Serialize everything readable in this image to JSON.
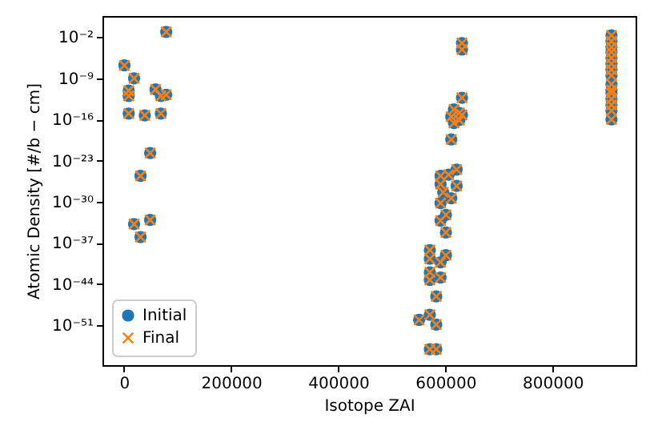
{
  "chart_data": {
    "type": "scatter",
    "xlabel": "Isotope ZAI",
    "ylabel": "Atomic Density [#/b − cm]",
    "log": "y",
    "legend": "bottom left",
    "grid": false,
    "xlim": [
      -40000,
      955000
    ],
    "xticks": [
      0,
      200000,
      400000,
      600000,
      800000
    ],
    "ylim": [
      1.6e-58,
      40
    ],
    "yticks": [
      {
        "value": 0.01,
        "label": "10⁻²"
      },
      {
        "value": 1e-09,
        "label": "10⁻⁹"
      },
      {
        "value": 1e-16,
        "label": "10⁻¹⁶"
      },
      {
        "value": 1e-23,
        "label": "10⁻²³"
      },
      {
        "value": 1e-30,
        "label": "10⁻³⁰"
      },
      {
        "value": 1e-37,
        "label": "10⁻³⁷"
      },
      {
        "value": 1e-44,
        "label": "10⁻⁴⁴"
      },
      {
        "value": 1e-51,
        "label": "10⁻⁵¹"
      }
    ],
    "x": [
      1000,
      19000,
      19000,
      9000,
      9000,
      9000,
      59000,
      69000,
      69000,
      79000,
      79000,
      39000,
      49000,
      49000,
      31000,
      31000,
      631000,
      631000,
      631000,
      616000,
      626000,
      631000,
      616000,
      626000,
      611000,
      611000,
      621000,
      591000,
      606000,
      591000,
      621000,
      596000,
      611000,
      591000,
      601000,
      591000,
      601000,
      571000,
      571000,
      601000,
      591000,
      571000,
      571000,
      591000,
      583000,
      551000,
      571000,
      583000,
      571000,
      583000,
      910000,
      910000,
      910000,
      910000,
      910000,
      910000,
      910000,
      910000,
      910000,
      910000,
      910000,
      910000,
      910000,
      910000,
      910000
    ],
    "series": [
      {
        "name": "Initial",
        "color": "#1f77b4",
        "marker": "circle",
        "values": [
          1.6e-07,
          1e-09,
          1.6e-34,
          8e-12,
          1e-12,
          1e-15,
          1.3e-11,
          1e-12,
          1e-15,
          1.6e-12,
          0.08,
          5e-16,
          2e-22,
          8e-34,
          2.5e-26,
          1e-36,
          0.001,
          8e-05,
          5e-13,
          5e-15,
          1.3e-15,
          6e-16,
          2.5e-17,
          8e-17,
          3e-16,
          4e-20,
          3e-25,
          2.5e-26,
          4e-26,
          1e-27,
          5e-28,
          4e-29,
          4e-30,
          6e-31,
          6e-33,
          6e-34,
          6e-36,
          6e-39,
          2e-40,
          8e-40,
          5e-41,
          1e-42,
          5e-44,
          1.3e-43,
          8e-47,
          8e-51,
          6e-50,
          1.3e-51,
          8e-56,
          8e-56,
          0.02,
          0.002,
          0.0002,
          3e-05,
          3e-06,
          3e-07,
          3e-08,
          3e-09,
          1e-10,
          1e-11,
          3e-12,
          3e-13,
          3e-14,
          3e-15,
          1e-16
        ]
      },
      {
        "name": "Final",
        "color": "#ff7f0e",
        "marker": "cross",
        "values": [
          1.6e-07,
          1e-09,
          1.6e-34,
          8e-12,
          1e-12,
          1e-15,
          1.3e-11,
          1e-12,
          1e-15,
          1.6e-12,
          0.08,
          5e-16,
          2e-22,
          8e-34,
          2.5e-26,
          1e-36,
          0.001,
          8e-05,
          5e-13,
          5e-15,
          1.3e-15,
          6e-16,
          2.5e-17,
          8e-17,
          3e-16,
          4e-20,
          3e-25,
          2.5e-26,
          4e-26,
          1e-27,
          5e-28,
          4e-29,
          4e-30,
          6e-31,
          6e-33,
          6e-34,
          6e-36,
          6e-39,
          2e-40,
          8e-40,
          5e-41,
          1e-42,
          5e-44,
          1.3e-43,
          8e-47,
          8e-51,
          6e-50,
          1.3e-51,
          8e-56,
          8e-56,
          0.02,
          0.002,
          0.0002,
          3e-05,
          3e-06,
          3e-07,
          3e-08,
          3e-09,
          1e-10,
          1e-11,
          3e-12,
          3e-13,
          3e-14,
          3e-15,
          1e-16
        ]
      }
    ]
  }
}
